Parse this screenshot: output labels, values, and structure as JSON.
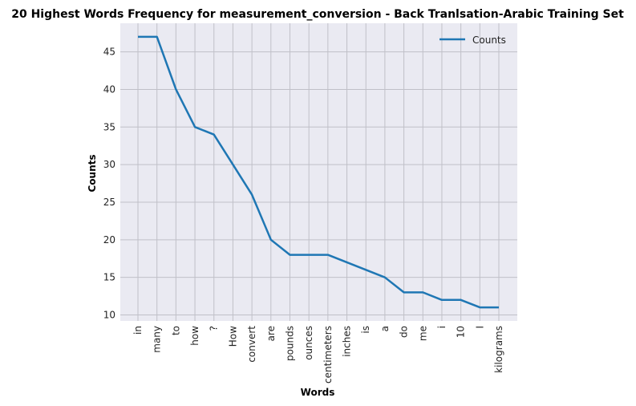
{
  "chart_data": {
    "type": "line",
    "title": "20 Highest Words Frequency for measurement_conversion - Back Tranlsation-Arabic Training Set",
    "xlabel": "Words",
    "ylabel": "Counts",
    "categories": [
      "in",
      "many",
      "to",
      "how",
      "?",
      "How",
      "convert",
      "are",
      "pounds",
      "ounces",
      "centimeters",
      "inches",
      "is",
      "a",
      "do",
      "me",
      "i",
      "10",
      "I",
      "kilograms"
    ],
    "series": [
      {
        "name": "Counts",
        "color": "#1f77b4",
        "values": [
          47,
          47,
          40,
          35,
          34,
          30,
          26,
          20,
          18,
          18,
          18,
          17,
          16,
          15,
          13,
          13,
          12,
          12,
          11,
          11
        ]
      }
    ],
    "ylim": [
      9.2,
      48.8
    ],
    "yticks": [
      10,
      15,
      20,
      25,
      30,
      35,
      40,
      45
    ],
    "grid": true,
    "legend_position": "top-right",
    "background_color": "#eaeaf2",
    "grid_color": "#c0c0c8"
  }
}
